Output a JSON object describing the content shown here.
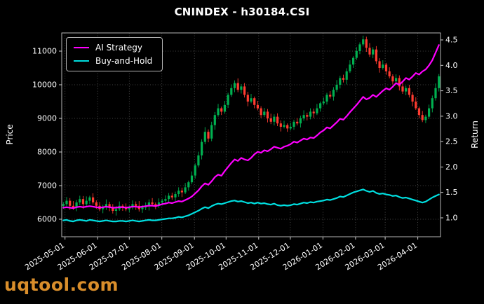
{
  "watermark": "uqtool.com",
  "legend": {
    "position": "upper left",
    "items": [
      {
        "label": "AI Strategy",
        "color": "#ff00ff"
      },
      {
        "label": "Buy-and-Hold",
        "color": "#00dfe0"
      }
    ]
  },
  "chart_data": {
    "type": "candlestick",
    "title": "CNINDEX - h30184.CSI",
    "grid": "dotted",
    "legend_position": "upper left",
    "price_axis": {
      "label": "Price",
      "ticks": [
        6000,
        7000,
        8000,
        9000,
        10000,
        11000
      ],
      "range": [
        5479,
        11542
      ]
    },
    "return_axis": {
      "label": "Return",
      "ticks": [
        "1.0",
        "1.5",
        "2.0",
        "2.5",
        "3.0",
        "3.5",
        "4.0",
        "4.5"
      ],
      "range": [
        0.628,
        4.638
      ]
    },
    "x_axis": {
      "tick_labels": [
        "2025-05-01",
        "2025-06-01",
        "2025-07-01",
        "2025-08-01",
        "2025-09-01",
        "2025-10-01",
        "2025-11-01",
        "2025-12-01",
        "2026-01-01",
        "2026-02-01",
        "2026-03-01",
        "2026-04-01"
      ],
      "tick_indices": [
        0.5,
        10.4,
        20.0,
        29.9,
        39.8,
        49.4,
        59.3,
        68.9,
        78.8,
        88.7,
        97.7,
        107.6
      ]
    },
    "up_color": "#00b050",
    "down_color": "#ff3b30",
    "candles_ohlc": [
      [
        6400,
        6510,
        6310,
        6450
      ],
      [
        6450,
        6660,
        6390,
        6550
      ],
      [
        6550,
        6630,
        6280,
        6400
      ],
      [
        6400,
        6540,
        6280,
        6350
      ],
      [
        6350,
        6570,
        6240,
        6500
      ],
      [
        6500,
        6700,
        6420,
        6600
      ],
      [
        6600,
        6690,
        6310,
        6450
      ],
      [
        6450,
        6680,
        6400,
        6550
      ],
      [
        6550,
        6700,
        6450,
        6650
      ],
      [
        6650,
        6770,
        6440,
        6500
      ],
      [
        6500,
        6560,
        6310,
        6400
      ],
      [
        6400,
        6510,
        6240,
        6300
      ],
      [
        6300,
        6430,
        6180,
        6350
      ],
      [
        6350,
        6590,
        6280,
        6450
      ],
      [
        6450,
        6520,
        6240,
        6350
      ],
      [
        6350,
        6450,
        6170,
        6250
      ],
      [
        6250,
        6390,
        6110,
        6300
      ],
      [
        6300,
        6530,
        6250,
        6400
      ],
      [
        6400,
        6450,
        6250,
        6350
      ],
      [
        6350,
        6470,
        6240,
        6300
      ],
      [
        6300,
        6410,
        6210,
        6350
      ],
      [
        6350,
        6560,
        6290,
        6450
      ],
      [
        6450,
        6530,
        6280,
        6400
      ],
      [
        6400,
        6540,
        6230,
        6300
      ],
      [
        6300,
        6420,
        6190,
        6350
      ],
      [
        6350,
        6500,
        6270,
        6400
      ],
      [
        6400,
        6590,
        6260,
        6500
      ],
      [
        6500,
        6630,
        6400,
        6450
      ],
      [
        6450,
        6500,
        6300,
        6400
      ],
      [
        6400,
        6620,
        6340,
        6500
      ],
      [
        6500,
        6610,
        6410,
        6550
      ],
      [
        6550,
        6710,
        6490,
        6600
      ],
      [
        6600,
        6780,
        6480,
        6700
      ],
      [
        6700,
        6790,
        6580,
        6650
      ],
      [
        6650,
        6820,
        6540,
        6750
      ],
      [
        6750,
        6950,
        6670,
        6850
      ],
      [
        6850,
        6940,
        6660,
        6800
      ],
      [
        6800,
        7080,
        6750,
        6950
      ],
      [
        6950,
        7150,
        6850,
        7100
      ],
      [
        7100,
        7420,
        7040,
        7300
      ],
      [
        7300,
        7660,
        7210,
        7600
      ],
      [
        7600,
        8010,
        7540,
        7900
      ],
      [
        7900,
        8380,
        7780,
        8300
      ],
      [
        8300,
        8740,
        8230,
        8600
      ],
      [
        8600,
        8670,
        8290,
        8400
      ],
      [
        8400,
        8900,
        8320,
        8800
      ],
      [
        8800,
        9190,
        8660,
        9100
      ],
      [
        9100,
        9430,
        9050,
        9300
      ],
      [
        9300,
        9350,
        9100,
        9200
      ],
      [
        9200,
        9520,
        9140,
        9400
      ],
      [
        9400,
        9760,
        9310,
        9700
      ],
      [
        9700,
        10010,
        9640,
        9900
      ],
      [
        9900,
        10130,
        9780,
        10050
      ],
      [
        10050,
        10190,
        9780,
        9850
      ],
      [
        9850,
        10020,
        9740,
        9950
      ],
      [
        9950,
        10050,
        9620,
        9700
      ],
      [
        9700,
        9790,
        9360,
        9500
      ],
      [
        9500,
        9730,
        9450,
        9600
      ],
      [
        9600,
        9650,
        9300,
        9400
      ],
      [
        9400,
        9520,
        9240,
        9300
      ],
      [
        9300,
        9360,
        9010,
        9100
      ],
      [
        9100,
        9310,
        9040,
        9200
      ],
      [
        9200,
        9280,
        8880,
        9000
      ],
      [
        9000,
        9140,
        8830,
        8900
      ],
      [
        8900,
        9120,
        8790,
        9050
      ],
      [
        9050,
        9150,
        8770,
        8850
      ],
      [
        8850,
        8940,
        8610,
        8750
      ],
      [
        8750,
        8930,
        8700,
        8800
      ],
      [
        8800,
        8850,
        8600,
        8700
      ],
      [
        8700,
        8870,
        8640,
        8750
      ],
      [
        8750,
        8960,
        8660,
        8900
      ],
      [
        8900,
        9010,
        8790,
        8850
      ],
      [
        8850,
        9080,
        8730,
        9000
      ],
      [
        9000,
        9240,
        8930,
        9100
      ],
      [
        9100,
        9170,
        8940,
        9050
      ],
      [
        9050,
        9300,
        8970,
        9200
      ],
      [
        9200,
        9290,
        9010,
        9150
      ],
      [
        9150,
        9430,
        9100,
        9300
      ],
      [
        9300,
        9500,
        9200,
        9450
      ],
      [
        9450,
        9620,
        9390,
        9500
      ],
      [
        9500,
        9760,
        9410,
        9700
      ],
      [
        9700,
        9810,
        9590,
        9650
      ],
      [
        9650,
        9930,
        9530,
        9850
      ],
      [
        9850,
        10140,
        9780,
        10000
      ],
      [
        10000,
        10270,
        9890,
        10200
      ],
      [
        10200,
        10300,
        10070,
        10150
      ],
      [
        10150,
        10490,
        10010,
        10400
      ],
      [
        10400,
        10730,
        10350,
        10600
      ],
      [
        10600,
        10850,
        10500,
        10800
      ],
      [
        10800,
        11120,
        10740,
        11000
      ],
      [
        11000,
        11260,
        10910,
        11200
      ],
      [
        11200,
        11460,
        11140,
        11350
      ],
      [
        11350,
        11430,
        10980,
        11100
      ],
      [
        11100,
        11240,
        10830,
        10900
      ],
      [
        10900,
        11120,
        10790,
        11050
      ],
      [
        11050,
        11150,
        10620,
        10700
      ],
      [
        10700,
        10790,
        10360,
        10500
      ],
      [
        10500,
        10730,
        10450,
        10600
      ],
      [
        10600,
        10650,
        10300,
        10400
      ],
      [
        10400,
        10520,
        10190,
        10250
      ],
      [
        10250,
        10310,
        10010,
        10100
      ],
      [
        10100,
        10310,
        10040,
        10200
      ],
      [
        10200,
        10280,
        9830,
        9950
      ],
      [
        9950,
        10090,
        9730,
        9800
      ],
      [
        9800,
        9970,
        9690,
        9900
      ],
      [
        9900,
        10000,
        9620,
        9700
      ],
      [
        9700,
        9790,
        9360,
        9500
      ],
      [
        9500,
        9630,
        9250,
        9300
      ],
      [
        9300,
        9350,
        9000,
        9100
      ],
      [
        9100,
        9220,
        8890,
        8950
      ],
      [
        8950,
        9110,
        8860,
        9050
      ],
      [
        9050,
        9410,
        8990,
        9300
      ],
      [
        9300,
        9680,
        9180,
        9600
      ],
      [
        9600,
        10040,
        9530,
        9900
      ],
      [
        9900,
        10320,
        9800,
        10250
      ]
    ],
    "series": [
      {
        "name": "AI Strategy",
        "axis": "return",
        "color": "#ff00ff",
        "width": 2.2,
        "values": [
          1.2,
          1.21,
          1.2,
          1.19,
          1.21,
          1.22,
          1.21,
          1.22,
          1.23,
          1.22,
          1.21,
          1.2,
          1.21,
          1.22,
          1.21,
          1.2,
          1.2,
          1.21,
          1.21,
          1.2,
          1.21,
          1.22,
          1.22,
          1.21,
          1.22,
          1.23,
          1.24,
          1.24,
          1.23,
          1.25,
          1.27,
          1.28,
          1.3,
          1.29,
          1.31,
          1.33,
          1.32,
          1.35,
          1.38,
          1.42,
          1.48,
          1.54,
          1.62,
          1.68,
          1.65,
          1.72,
          1.8,
          1.85,
          1.83,
          1.92,
          2.0,
          2.08,
          2.15,
          2.12,
          2.18,
          2.15,
          2.13,
          2.18,
          2.25,
          2.3,
          2.28,
          2.33,
          2.31,
          2.35,
          2.4,
          2.38,
          2.36,
          2.4,
          2.42,
          2.45,
          2.5,
          2.48,
          2.52,
          2.56,
          2.54,
          2.58,
          2.57,
          2.62,
          2.68,
          2.72,
          2.78,
          2.76,
          2.82,
          2.88,
          2.95,
          2.93,
          3.0,
          3.08,
          3.15,
          3.22,
          3.3,
          3.38,
          3.33,
          3.36,
          3.42,
          3.38,
          3.44,
          3.5,
          3.55,
          3.52,
          3.58,
          3.65,
          3.62,
          3.68,
          3.75,
          3.72,
          3.78,
          3.85,
          3.82,
          3.88,
          3.92,
          4.0,
          4.1,
          4.25,
          4.4
        ]
      },
      {
        "name": "Buy-and-Hold",
        "axis": "return",
        "color": "#00dfe0",
        "width": 2.2,
        "values": [
          0.95,
          0.96,
          0.94,
          0.93,
          0.95,
          0.96,
          0.95,
          0.94,
          0.96,
          0.95,
          0.94,
          0.93,
          0.94,
          0.95,
          0.94,
          0.93,
          0.93,
          0.94,
          0.94,
          0.93,
          0.94,
          0.95,
          0.94,
          0.93,
          0.94,
          0.95,
          0.96,
          0.95,
          0.95,
          0.96,
          0.97,
          0.98,
          0.99,
          0.99,
          1.0,
          1.02,
          1.01,
          1.03,
          1.05,
          1.08,
          1.11,
          1.14,
          1.18,
          1.21,
          1.19,
          1.23,
          1.26,
          1.28,
          1.27,
          1.29,
          1.31,
          1.33,
          1.34,
          1.32,
          1.33,
          1.31,
          1.29,
          1.3,
          1.28,
          1.3,
          1.28,
          1.29,
          1.27,
          1.26,
          1.28,
          1.25,
          1.24,
          1.25,
          1.24,
          1.25,
          1.27,
          1.26,
          1.28,
          1.3,
          1.29,
          1.31,
          1.3,
          1.32,
          1.33,
          1.34,
          1.36,
          1.35,
          1.37,
          1.39,
          1.42,
          1.41,
          1.44,
          1.47,
          1.5,
          1.52,
          1.54,
          1.56,
          1.53,
          1.51,
          1.53,
          1.49,
          1.47,
          1.48,
          1.46,
          1.45,
          1.43,
          1.44,
          1.41,
          1.39,
          1.4,
          1.38,
          1.36,
          1.34,
          1.32,
          1.3,
          1.32,
          1.36,
          1.4,
          1.43,
          1.46
        ]
      }
    ]
  }
}
